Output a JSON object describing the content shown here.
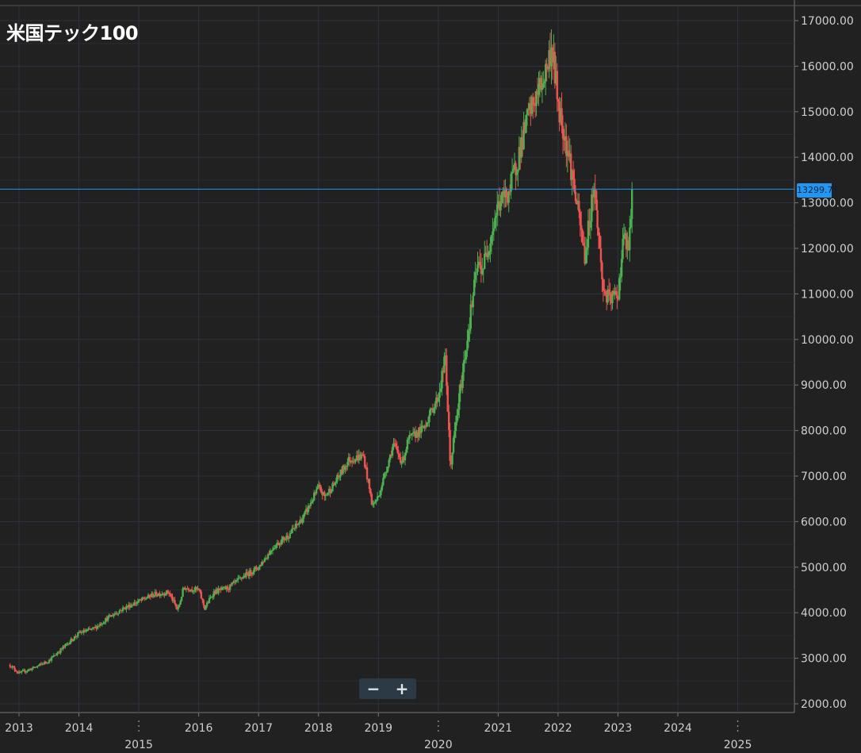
{
  "title": "米国テック100",
  "last_price_label": "13299.75",
  "zoom": {
    "minus": "−",
    "plus": "+"
  },
  "colors": {
    "background": "#212121",
    "grid": "#2c3340",
    "up": "#4caf50",
    "down": "#ef5350",
    "price_line": "#2196f3",
    "text": "#cfcfcf"
  },
  "chart_data": {
    "type": "candlestick",
    "title": "米国テック100",
    "y_axis": {
      "position": "right",
      "range": [
        1900,
        17300
      ],
      "ticks": [
        "2000.00",
        "3000.00",
        "4000.00",
        "5000.00",
        "6000.00",
        "7000.00",
        "8000.00",
        "9000.00",
        "10000.00",
        "11000.00",
        "12000.00",
        "13000.00",
        "14000.00",
        "15000.00",
        "16000.00",
        "17000.00"
      ]
    },
    "x_axis": {
      "range": [
        2012.85,
        2026.0
      ],
      "upper_tick_labels": [
        "2013",
        "2014",
        "2016",
        "2017",
        "2018",
        "2019",
        "2021",
        "2022",
        "2023",
        "2024"
      ],
      "lower_tick_labels": [
        "2015",
        "2020",
        "2025"
      ]
    },
    "last_price": 13299.75,
    "series": {
      "x": [
        2012.85,
        2013.0,
        2013.25,
        2013.5,
        2013.75,
        2014.0,
        2014.25,
        2014.5,
        2014.75,
        2015.0,
        2015.25,
        2015.5,
        2015.65,
        2015.75,
        2016.0,
        2016.1,
        2016.25,
        2016.5,
        2016.75,
        2017.0,
        2017.25,
        2017.5,
        2017.75,
        2018.0,
        2018.1,
        2018.25,
        2018.5,
        2018.75,
        2018.9,
        2019.0,
        2019.25,
        2019.4,
        2019.5,
        2019.75,
        2020.0,
        2020.12,
        2020.2,
        2020.3,
        2020.5,
        2020.65,
        2020.75,
        2021.0,
        2021.2,
        2021.5,
        2021.75,
        2021.9,
        2022.0,
        2022.2,
        2022.45,
        2022.6,
        2022.75,
        2022.85,
        2023.0,
        2023.1,
        2023.17,
        2023.25
      ],
      "close": [
        2850,
        2670,
        2790,
        2950,
        3250,
        3550,
        3650,
        3900,
        4100,
        4250,
        4400,
        4450,
        4050,
        4550,
        4500,
        4100,
        4450,
        4550,
        4800,
        5000,
        5450,
        5700,
        6100,
        6750,
        6550,
        6800,
        7350,
        7450,
        6350,
        6550,
        7700,
        7300,
        7800,
        8050,
        8750,
        9600,
        7200,
        8200,
        10200,
        11600,
        11600,
        12950,
        13300,
        14900,
        15700,
        16400,
        15200,
        13900,
        11800,
        13450,
        11100,
        10850,
        11000,
        12300,
        11900,
        13300
      ]
    }
  }
}
